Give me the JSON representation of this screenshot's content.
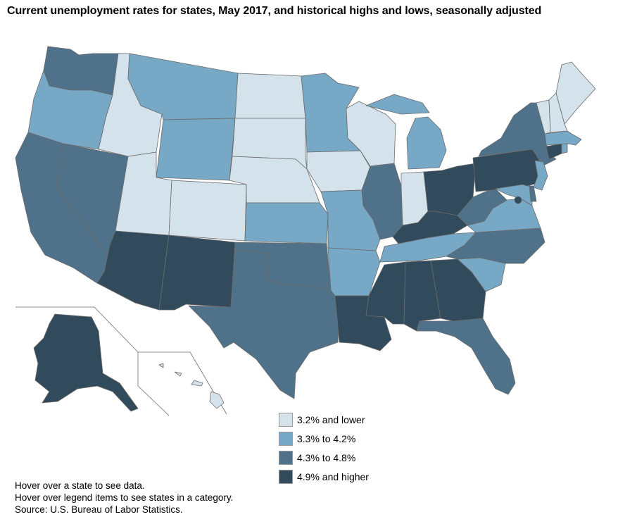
{
  "title": "Current unemployment rates for states, May 2017, and historical highs and lows, seasonally adjusted",
  "legend": [
    {
      "label": "3.2% and lower",
      "color": "#d4e2ec"
    },
    {
      "label": "3.3% to 4.2%",
      "color": "#77a8c6"
    },
    {
      "label": "4.3% to 4.8%",
      "color": "#4f7189"
    },
    {
      "label": "4.9% and higher",
      "color": "#324b5c"
    }
  ],
  "notes": {
    "hover_state": "Hover over a state to see data.",
    "hover_legend": "Hover over legend items to see states in a category.",
    "source": "Source: U.S. Bureau of Labor Statistics."
  },
  "map_data": {
    "type": "choropleth",
    "region": "United States",
    "categories": [
      "3.2% and lower",
      "3.3% to 4.2%",
      "4.3% to 4.8%",
      "4.9% and higher"
    ],
    "states": {
      "Washington": "4.3% to 4.8%",
      "Oregon": "3.3% to 4.2%",
      "California": "4.3% to 4.8%",
      "Nevada": "4.3% to 4.8%",
      "Idaho": "3.2% and lower",
      "Montana": "3.3% to 4.2%",
      "Wyoming": "3.3% to 4.2%",
      "Utah": "3.2% and lower",
      "Colorado": "3.2% and lower",
      "Arizona": "4.9% and higher",
      "New Mexico": "4.9% and higher",
      "North Dakota": "3.2% and lower",
      "South Dakota": "3.2% and lower",
      "Nebraska": "3.2% and lower",
      "Kansas": "3.3% to 4.2%",
      "Oklahoma": "4.3% to 4.8%",
      "Texas": "4.3% to 4.8%",
      "Minnesota": "3.3% to 4.2%",
      "Iowa": "3.2% and lower",
      "Missouri": "3.3% to 4.2%",
      "Arkansas": "3.3% to 4.2%",
      "Louisiana": "4.9% and higher",
      "Wisconsin": "3.2% and lower",
      "Illinois": "4.3% to 4.8%",
      "Michigan": "3.3% to 4.2%",
      "Indiana": "3.2% and lower",
      "Ohio": "4.9% and higher",
      "Kentucky": "4.9% and higher",
      "Tennessee": "3.3% to 4.2%",
      "Mississippi": "4.9% and higher",
      "Alabama": "4.9% and higher",
      "Georgia": "4.9% and higher",
      "Florida": "4.3% to 4.8%",
      "South Carolina": "3.3% to 4.2%",
      "North Carolina": "4.3% to 4.8%",
      "Virginia": "3.3% to 4.2%",
      "West Virginia": "4.3% to 4.8%",
      "Pennsylvania": "4.9% and higher",
      "New York": "4.3% to 4.8%",
      "New Jersey": "3.3% to 4.2%",
      "Maryland": "3.3% to 4.2%",
      "Delaware": "4.3% to 4.8%",
      "District of Columbia": "4.9% and higher",
      "Connecticut": "4.9% and higher",
      "Rhode Island": "3.3% to 4.2%",
      "Massachusetts": "3.3% to 4.2%",
      "Vermont": "3.2% and lower",
      "New Hampshire": "3.2% and lower",
      "Maine": "3.2% and lower",
      "Alaska": "4.9% and higher",
      "Hawaii": "3.2% and lower"
    }
  }
}
